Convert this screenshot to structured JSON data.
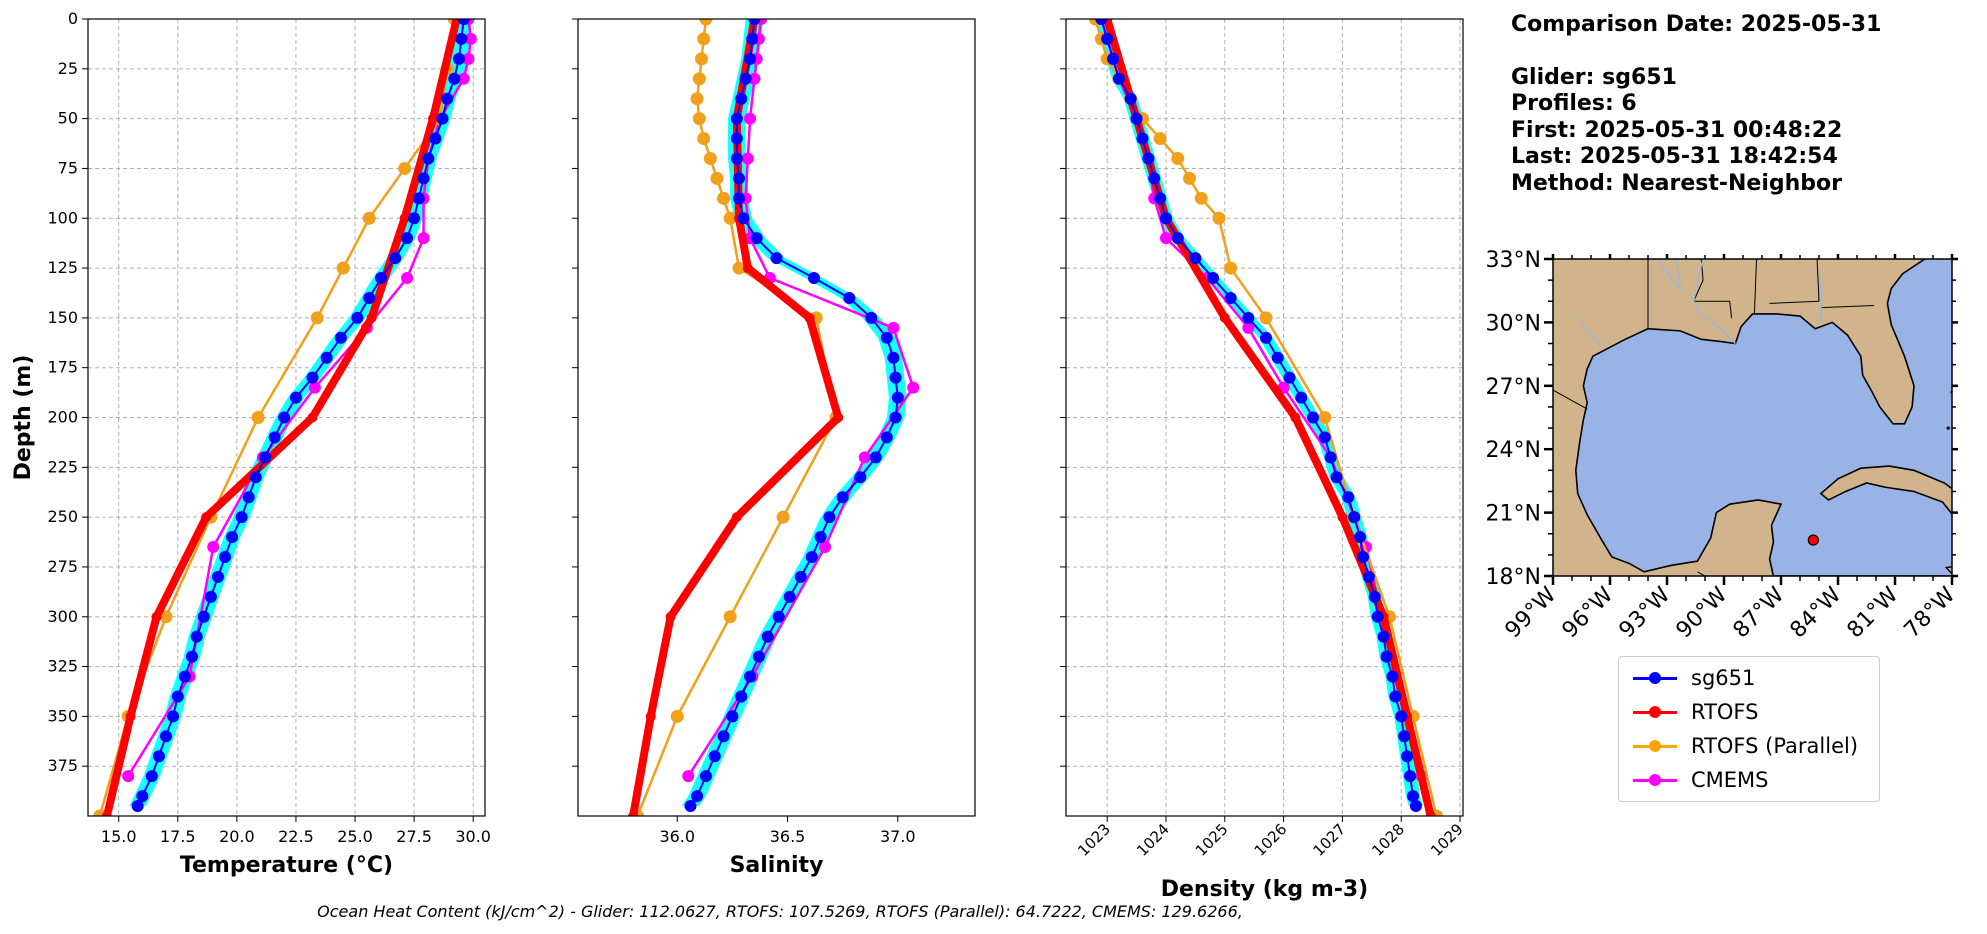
{
  "info": {
    "comparison": "Comparison Date: 2025-05-31",
    "glider": "Glider: sg651",
    "profiles": "Profiles: 6",
    "first": "First: 2025-05-31 00:48:22",
    "last": "Last: 2025-05-31 18:42:54",
    "method": "Method: Nearest-Neighbor"
  },
  "footer": "Ocean Heat Content (kJ/cm^2) - Glider: 112.0627,  RTOFS: 107.5269,  RTOFS (Parallel): 64.7222,  CMEMS: 129.6266,",
  "legend": [
    {
      "label": "sg651",
      "color": "#0000ff"
    },
    {
      "label": "RTOFS",
      "color": "#ff0000"
    },
    {
      "label": "RTOFS (Parallel)",
      "color": "#ffa500"
    },
    {
      "label": "CMEMS",
      "color": "#ff00ff"
    }
  ],
  "colors": {
    "glider_spread": "#00ffff",
    "glider": "#0000ff",
    "rtofs": "#ff0000",
    "rtofs_parallel": "#f0a01a",
    "cmems": "#ff00ff",
    "land": "#d2b48c",
    "water": "#99b3e6"
  },
  "chart_data": [
    {
      "type": "line",
      "xlabel": "Temperature (°C)",
      "ylabel": "Depth (m)",
      "xlim": [
        13.7,
        30.5
      ],
      "ylim": [
        400,
        0
      ],
      "xticks": [
        "15.0",
        "17.5",
        "20.0",
        "22.5",
        "25.0",
        "27.5",
        "30.0"
      ],
      "yticks": [
        "0",
        "25",
        "50",
        "75",
        "100",
        "125",
        "150",
        "175",
        "200",
        "225",
        "250",
        "275",
        "300",
        "325",
        "350",
        "375"
      ],
      "grid": true,
      "series": [
        {
          "name": "sg651",
          "depth": [
            0,
            10,
            20,
            30,
            40,
            50,
            60,
            70,
            80,
            90,
            100,
            110,
            120,
            130,
            140,
            150,
            160,
            170,
            180,
            190,
            200,
            210,
            220,
            230,
            240,
            250,
            260,
            270,
            280,
            290,
            300,
            310,
            320,
            330,
            340,
            350,
            360,
            370,
            380,
            390,
            395
          ],
          "values": [
            29.6,
            29.5,
            29.4,
            29.2,
            28.9,
            28.7,
            28.4,
            28.1,
            27.9,
            27.7,
            27.5,
            27.2,
            26.7,
            26.1,
            25.6,
            25.1,
            24.4,
            23.8,
            23.2,
            22.5,
            22.0,
            21.6,
            21.2,
            20.8,
            20.5,
            20.2,
            19.8,
            19.5,
            19.2,
            18.9,
            18.6,
            18.3,
            18.1,
            17.8,
            17.5,
            17.3,
            17.0,
            16.7,
            16.4,
            16.0,
            15.8
          ]
        },
        {
          "name": "RTOFS",
          "depth": [
            0,
            50,
            100,
            150,
            200,
            250,
            300,
            350,
            400
          ],
          "values": [
            29.3,
            28.3,
            27.1,
            25.7,
            23.2,
            18.7,
            16.6,
            15.5,
            14.5
          ]
        },
        {
          "name": "RTOFS (Parallel)",
          "depth": [
            0,
            25,
            50,
            75,
            100,
            125,
            150,
            200,
            250,
            300,
            350,
            400
          ],
          "values": [
            29.2,
            28.9,
            28.6,
            27.1,
            25.6,
            24.5,
            23.4,
            20.9,
            18.9,
            17.0,
            15.4,
            14.2
          ]
        },
        {
          "name": "CMEMS",
          "depth": [
            0,
            10,
            20,
            30,
            50,
            70,
            90,
            110,
            130,
            155,
            185,
            220,
            265,
            330,
            380
          ],
          "values": [
            29.8,
            29.9,
            29.8,
            29.6,
            28.6,
            28.1,
            27.9,
            27.9,
            27.2,
            25.5,
            23.3,
            21.1,
            19.0,
            18.0,
            15.4
          ]
        }
      ]
    },
    {
      "type": "line",
      "xlabel": "Salinity",
      "xlim": [
        35.55,
        37.35
      ],
      "ylim": [
        400,
        0
      ],
      "xticks": [
        "36.0",
        "36.5",
        "37.0"
      ],
      "grid": false,
      "series": [
        {
          "name": "sg651",
          "depth": [
            0,
            10,
            20,
            30,
            40,
            50,
            60,
            70,
            80,
            90,
            100,
            110,
            120,
            130,
            140,
            150,
            160,
            170,
            180,
            190,
            200,
            210,
            220,
            230,
            240,
            250,
            260,
            270,
            280,
            290,
            300,
            310,
            320,
            330,
            340,
            350,
            360,
            370,
            380,
            390,
            395
          ],
          "values": [
            36.35,
            36.34,
            36.33,
            36.31,
            36.29,
            36.27,
            36.27,
            36.27,
            36.28,
            36.28,
            36.3,
            36.36,
            36.45,
            36.62,
            36.78,
            36.88,
            36.95,
            36.98,
            36.99,
            37.0,
            36.99,
            36.95,
            36.9,
            36.83,
            36.75,
            36.69,
            36.65,
            36.61,
            36.56,
            36.51,
            36.46,
            36.41,
            36.37,
            36.33,
            36.29,
            36.25,
            36.21,
            36.17,
            36.13,
            36.09,
            36.06
          ]
        },
        {
          "name": "RTOFS",
          "depth": [
            0,
            50,
            100,
            125,
            150,
            200,
            250,
            300,
            350,
            400
          ],
          "values": [
            36.35,
            36.27,
            36.28,
            36.32,
            36.6,
            36.73,
            36.27,
            35.97,
            35.88,
            35.8
          ]
        },
        {
          "name": "RTOFS (Parallel)",
          "depth": [
            0,
            10,
            20,
            30,
            40,
            50,
            60,
            70,
            80,
            90,
            100,
            125,
            150,
            200,
            250,
            300,
            350,
            400
          ],
          "values": [
            36.13,
            36.12,
            36.11,
            36.1,
            36.09,
            36.1,
            36.12,
            36.15,
            36.18,
            36.21,
            36.24,
            36.28,
            36.63,
            36.72,
            36.48,
            36.24,
            36.0,
            35.82
          ]
        },
        {
          "name": "CMEMS",
          "depth": [
            0,
            10,
            20,
            30,
            50,
            70,
            90,
            110,
            130,
            155,
            185,
            220,
            265,
            330,
            380
          ],
          "values": [
            36.38,
            36.37,
            36.36,
            36.35,
            36.33,
            36.32,
            36.31,
            36.33,
            36.42,
            36.98,
            37.07,
            36.85,
            36.67,
            36.34,
            36.05
          ]
        }
      ]
    },
    {
      "type": "line",
      "xlabel": "Density (kg m-3)",
      "xlim": [
        1022.3,
        1029.05
      ],
      "ylim": [
        400,
        0
      ],
      "xticks": [
        "1023",
        "1024",
        "1025",
        "1026",
        "1027",
        "1028",
        "1029"
      ],
      "grid": true,
      "series": [
        {
          "name": "sg651",
          "depth": [
            0,
            10,
            20,
            30,
            40,
            50,
            60,
            70,
            80,
            90,
            100,
            110,
            120,
            130,
            140,
            150,
            160,
            170,
            180,
            190,
            200,
            210,
            220,
            230,
            240,
            250,
            260,
            270,
            280,
            290,
            300,
            310,
            320,
            330,
            340,
            350,
            360,
            370,
            380,
            390,
            395
          ],
          "values": [
            1022.9,
            1023.0,
            1023.1,
            1023.2,
            1023.4,
            1023.5,
            1023.6,
            1023.7,
            1023.8,
            1023.9,
            1024.0,
            1024.2,
            1024.5,
            1024.8,
            1025.1,
            1025.4,
            1025.7,
            1025.9,
            1026.1,
            1026.3,
            1026.5,
            1026.7,
            1026.8,
            1026.9,
            1027.1,
            1027.2,
            1027.3,
            1027.35,
            1027.45,
            1027.55,
            1027.6,
            1027.7,
            1027.75,
            1027.85,
            1027.9,
            1028.0,
            1028.05,
            1028.1,
            1028.15,
            1028.2,
            1028.25
          ]
        },
        {
          "name": "RTOFS",
          "depth": [
            0,
            50,
            100,
            150,
            200,
            250,
            300,
            350,
            400
          ],
          "values": [
            1023.0,
            1023.5,
            1024.0,
            1025.0,
            1026.2,
            1027.0,
            1027.7,
            1028.1,
            1028.5
          ]
        },
        {
          "name": "RTOFS (Parallel)",
          "depth": [
            0,
            10,
            20,
            30,
            40,
            50,
            60,
            70,
            80,
            90,
            100,
            125,
            150,
            200,
            250,
            300,
            350,
            400
          ],
          "values": [
            1022.8,
            1022.9,
            1023.0,
            1023.2,
            1023.4,
            1023.6,
            1023.9,
            1024.2,
            1024.4,
            1024.6,
            1024.9,
            1025.1,
            1025.7,
            1026.7,
            1027.2,
            1027.8,
            1028.2,
            1028.6
          ]
        },
        {
          "name": "CMEMS",
          "depth": [
            0,
            10,
            20,
            30,
            50,
            70,
            90,
            110,
            130,
            155,
            185,
            220,
            265,
            330,
            380
          ],
          "values": [
            1022.9,
            1023.0,
            1023.1,
            1023.2,
            1023.5,
            1023.7,
            1023.8,
            1024.0,
            1024.7,
            1025.4,
            1026.0,
            1026.8,
            1027.4,
            1027.9,
            1028.35
          ]
        }
      ]
    }
  ],
  "map": {
    "lon_ticks": [
      "99°W",
      "96°W",
      "93°W",
      "90°W",
      "87°W",
      "84°W",
      "81°W",
      "78°W"
    ],
    "lat_ticks": [
      "18°N",
      "21°N",
      "24°N",
      "27°N",
      "30°N",
      "33°N"
    ],
    "lon_range": [
      -99,
      -78
    ],
    "lat_range": [
      18,
      33
    ],
    "glider_position": {
      "lon": -85.3,
      "lat": 19.7
    }
  }
}
